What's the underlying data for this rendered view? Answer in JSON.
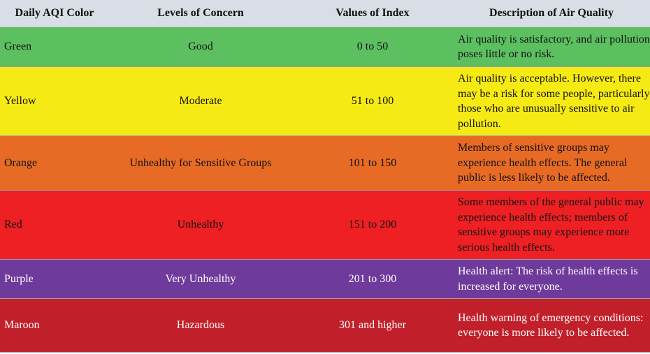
{
  "headers": [
    "Daily AQI Color",
    "Levels of Concern",
    "Values of Index",
    "Description of Air Quality"
  ],
  "rows": [
    {
      "color": "Green",
      "level": "Good",
      "values": "0 to 50",
      "description": "Air quality is satisfactory, and air pollution poses little or no risk.",
      "bg": "#5cbf60",
      "fg": "#111111"
    },
    {
      "color": "Yellow",
      "level": "Moderate",
      "values": "51 to 100",
      "description": "Air quality is acceptable. However, there may be a risk for some people, particularly those who are unusually sensitive to air pollution.",
      "bg": "#f6ea14",
      "fg": "#111111"
    },
    {
      "color": "Orange",
      "level": "Unhealthy for Sensitive Groups",
      "values": "101 to 150",
      "description": "Members of sensitive groups may experience health effects. The general public is less likely to be affected.",
      "bg": "#e76b24",
      "fg": "#111111"
    },
    {
      "color": "Red",
      "level": "Unhealthy",
      "values": "151 to 200",
      "description": "Some members of the general public may experience health effects; members of sensitive groups may experience more serious health effects.",
      "bg": "#ee2023",
      "fg": "#111111"
    },
    {
      "color": "Purple",
      "level": "Very Unhealthy",
      "values": "201 to 300",
      "description": "Health alert: The risk of health effects is increased for everyone.",
      "bg": "#6e3a9b",
      "fg": "#ffffff"
    },
    {
      "color": "Maroon",
      "level": "Hazardous",
      "values": "301 and higher",
      "description": "Health warning of emergency conditions: everyone is more likely to be affected.",
      "bg": "#c1202a",
      "fg": "#ffffff"
    }
  ]
}
